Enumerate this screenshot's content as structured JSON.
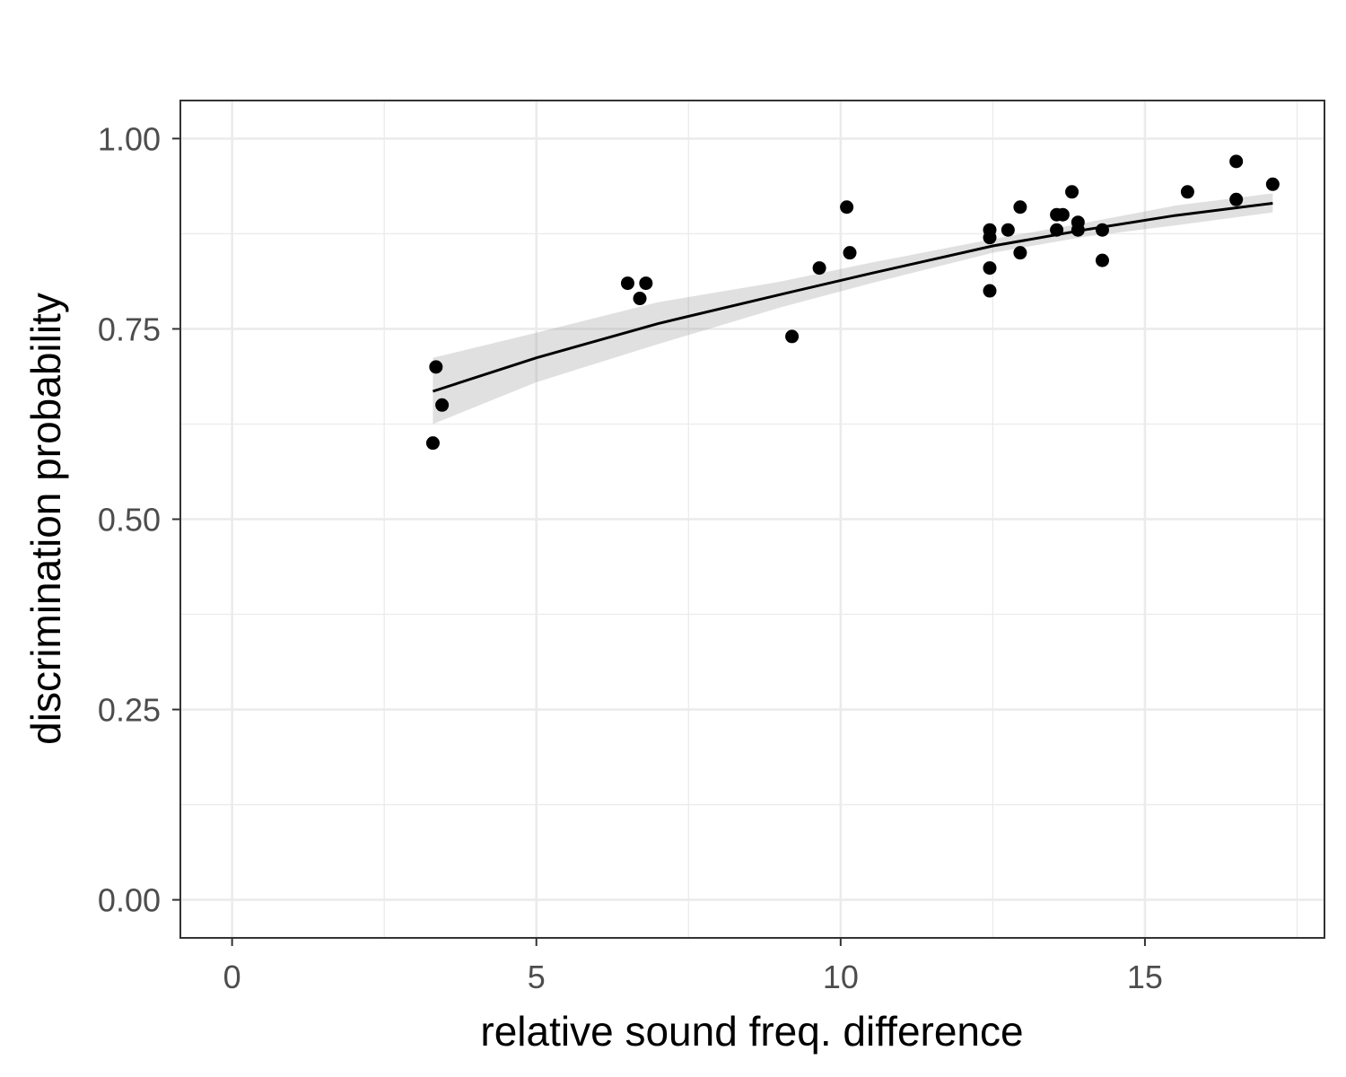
{
  "chart_data": {
    "type": "scatter",
    "title": "",
    "xlabel": "relative sound freq. difference",
    "ylabel": "discrimination probability",
    "xlim": [
      -0.85,
      17.95
    ],
    "ylim": [
      -0.05,
      1.05
    ],
    "x_ticks": [
      0,
      5,
      10,
      15
    ],
    "x_tick_labels": [
      "0",
      "5",
      "10",
      "15"
    ],
    "x_minor_ticks": [
      2.5,
      7.5,
      12.5,
      17.5
    ],
    "y_ticks": [
      0,
      0.25,
      0.5,
      0.75,
      1.0
    ],
    "y_tick_labels": [
      "0.00",
      "0.25",
      "0.50",
      "0.75",
      "1.00"
    ],
    "y_minor_ticks": [
      0.125,
      0.375,
      0.625,
      0.875
    ],
    "grid": true,
    "legend": "none",
    "points": [
      {
        "x": 3.3,
        "y": 0.6
      },
      {
        "x": 3.35,
        "y": 0.7
      },
      {
        "x": 3.45,
        "y": 0.65
      },
      {
        "x": 6.5,
        "y": 0.81
      },
      {
        "x": 6.7,
        "y": 0.79
      },
      {
        "x": 6.8,
        "y": 0.81
      },
      {
        "x": 9.2,
        "y": 0.74
      },
      {
        "x": 9.65,
        "y": 0.83
      },
      {
        "x": 10.1,
        "y": 0.91
      },
      {
        "x": 10.15,
        "y": 0.85
      },
      {
        "x": 12.45,
        "y": 0.88
      },
      {
        "x": 12.45,
        "y": 0.87
      },
      {
        "x": 12.45,
        "y": 0.83
      },
      {
        "x": 12.45,
        "y": 0.8
      },
      {
        "x": 12.75,
        "y": 0.88
      },
      {
        "x": 12.95,
        "y": 0.91
      },
      {
        "x": 12.95,
        "y": 0.85
      },
      {
        "x": 13.55,
        "y": 0.9
      },
      {
        "x": 13.55,
        "y": 0.88
      },
      {
        "x": 13.65,
        "y": 0.9
      },
      {
        "x": 13.8,
        "y": 0.93
      },
      {
        "x": 13.9,
        "y": 0.89
      },
      {
        "x": 13.9,
        "y": 0.88
      },
      {
        "x": 14.3,
        "y": 0.88
      },
      {
        "x": 14.3,
        "y": 0.84
      },
      {
        "x": 15.7,
        "y": 0.93
      },
      {
        "x": 16.5,
        "y": 0.97
      },
      {
        "x": 16.5,
        "y": 0.92
      },
      {
        "x": 17.1,
        "y": 0.94
      }
    ],
    "fit_line": {
      "x": [
        3.3,
        5,
        7,
        9,
        10.5,
        12.5,
        14,
        15.5,
        17.1
      ],
      "y": [
        0.668,
        0.712,
        0.757,
        0.795,
        0.823,
        0.859,
        0.88,
        0.899,
        0.915
      ]
    },
    "confidence_band": {
      "x": [
        3.3,
        5,
        7,
        9,
        10.5,
        12.5,
        14,
        15.5,
        17.1
      ],
      "lower": [
        0.625,
        0.68,
        0.73,
        0.778,
        0.81,
        0.85,
        0.871,
        0.886,
        0.903
      ],
      "upper": [
        0.712,
        0.745,
        0.785,
        0.812,
        0.837,
        0.868,
        0.889,
        0.912,
        0.928
      ]
    },
    "colors": {
      "points": "#000000",
      "line": "#000000",
      "band": "#999999",
      "grid": "#ebebeb",
      "panel_border": "#333333",
      "tick_text": "#4d4d4d"
    }
  }
}
